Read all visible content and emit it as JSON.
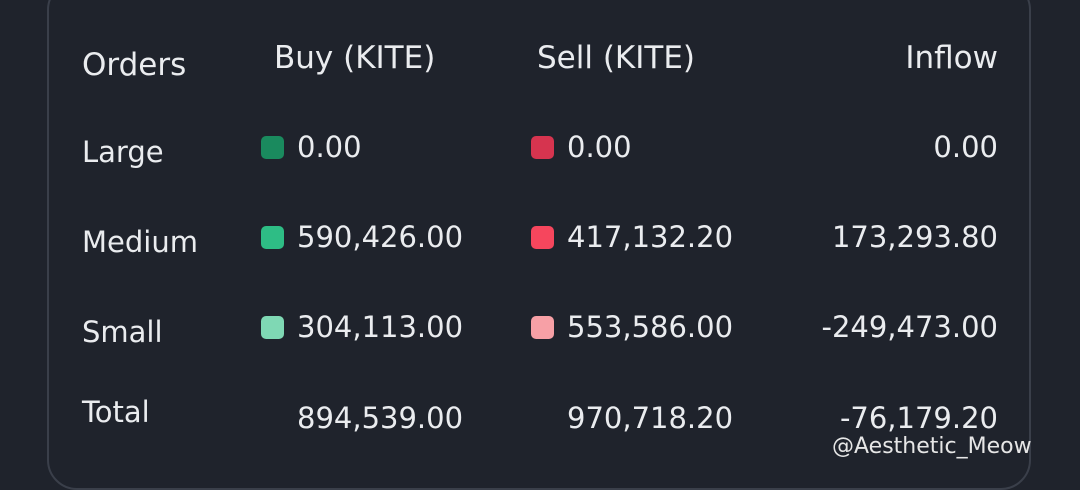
{
  "table": {
    "header": [
      "Orders",
      "Buy (KITE)",
      "Sell (KITE)",
      "Inflow"
    ],
    "rows": [
      {
        "label": "Large",
        "buy": "0.00",
        "buy_color": "#1a8a5e",
        "sell": "0.00",
        "sell_color": "#d6344f",
        "inflow": "0.00"
      },
      {
        "label": "Medium",
        "buy": "590,426.00",
        "buy_color": "#2ebd85",
        "sell": "417,132.20",
        "sell_color": "#f6465d",
        "inflow": "173,293.80"
      },
      {
        "label": "Small",
        "buy": "304,113.00",
        "buy_color": "#7fd8b4",
        "sell": "553,586.00",
        "sell_color": "#f7a0a6",
        "inflow": "-249,473.00"
      },
      {
        "label": "Total",
        "buy": "894,539.00",
        "sell": "970,718.20",
        "inflow": "-76,179.20"
      }
    ]
  },
  "watermark": "@Aesthetic_Meow"
}
